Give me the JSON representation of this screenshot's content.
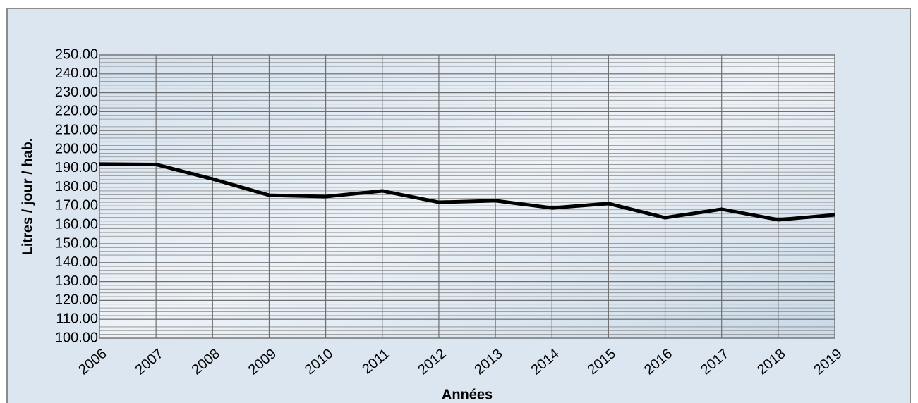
{
  "chart_data": {
    "type": "line",
    "x_label": "Années",
    "y_label": "Litres / jour / hab.",
    "categories": [
      "2006",
      "2007",
      "2008",
      "2009",
      "2010",
      "2011",
      "2012",
      "2013",
      "2014",
      "2015",
      "2016",
      "2017",
      "2018",
      "2019"
    ],
    "series": [
      {
        "name": "Litres / jour / hab.",
        "color": "#000000",
        "values": [
          192.2,
          192,
          184.3,
          175.7,
          175,
          178,
          172,
          172.8,
          169,
          171.3,
          163.8,
          168.3,
          162.7,
          165.3
        ]
      }
    ],
    "ylim": [
      100,
      250
    ],
    "yticks": [
      {
        "value": 100,
        "label": "100.00"
      },
      {
        "value": 110,
        "label": "110.00"
      },
      {
        "value": 120,
        "label": "120.00"
      },
      {
        "value": 130,
        "label": "130.00"
      },
      {
        "value": 140,
        "label": "140.00"
      },
      {
        "value": 150,
        "label": "150.00"
      },
      {
        "value": 160,
        "label": "160.00"
      },
      {
        "value": 170,
        "label": "170.00"
      },
      {
        "value": 180,
        "label": "180.00"
      },
      {
        "value": 190,
        "label": "190.00"
      },
      {
        "value": 200,
        "label": "200.00"
      },
      {
        "value": 210,
        "label": "210.00"
      },
      {
        "value": 220,
        "label": "220.00"
      },
      {
        "value": 230,
        "label": "230.00"
      },
      {
        "value": 240,
        "label": "240.00"
      },
      {
        "value": 250,
        "label": "250.00"
      }
    ],
    "grid": true
  }
}
